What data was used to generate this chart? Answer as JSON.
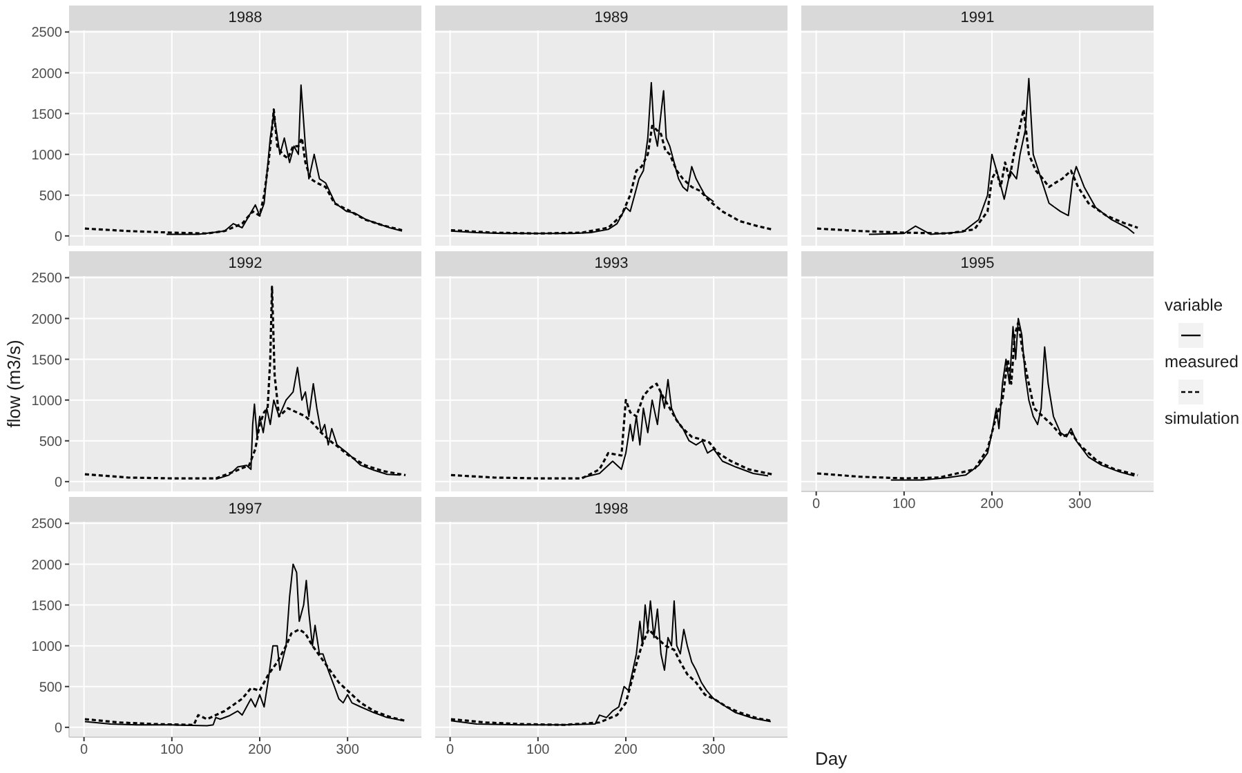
{
  "chart_data": [
    {
      "type": "line",
      "title": "1988",
      "xlim": [
        -17,
        384
      ],
      "ylim": [
        -120,
        2520
      ],
      "xticks": [
        0,
        100,
        200,
        300
      ],
      "yticks": [
        0,
        500,
        1000,
        1500,
        2000,
        2500
      ],
      "grid": true,
      "tick_labels": "y",
      "series": [
        {
          "color": "#000000",
          "line_style": "solid",
          "x": [
            94,
            130,
            160,
            170,
            180,
            188,
            195,
            200,
            205,
            212,
            216,
            223,
            228,
            234,
            239,
            244,
            247,
            252,
            256,
            262,
            268,
            275,
            286,
            299,
            308,
            321,
            348,
            362
          ],
          "values": [
            20,
            20,
            60,
            150,
            100,
            250,
            380,
            250,
            400,
            1200,
            1500,
            1000,
            1200,
            900,
            1100,
            1000,
            1850,
            1100,
            700,
            1000,
            700,
            650,
            400,
            300,
            280,
            200,
            100,
            60
          ]
        },
        {
          "color": "#000000",
          "line_style": "dashed",
          "x": [
            1,
            50,
            100,
            140,
            160,
            180,
            192,
            200,
            205,
            210,
            214,
            216,
            220,
            226,
            232,
            238,
            244,
            248,
            252,
            258,
            265,
            275,
            285,
            300,
            320,
            340,
            362
          ],
          "values": [
            90,
            60,
            40,
            30,
            60,
            150,
            300,
            250,
            500,
            900,
            1300,
            1550,
            1100,
            1000,
            950,
            1100,
            1100,
            1200,
            900,
            700,
            650,
            600,
            400,
            320,
            200,
            130,
            70
          ]
        }
      ]
    },
    {
      "type": "line",
      "title": "1989",
      "xlim": [
        -17,
        384
      ],
      "ylim": [
        -120,
        2520
      ],
      "xticks": [
        0,
        100,
        200,
        300
      ],
      "yticks": [
        0,
        500,
        1000,
        1500,
        2000,
        2500
      ],
      "grid": true,
      "tick_labels": false,
      "series": [
        {
          "color": "#000000",
          "line_style": "solid",
          "x": [
            1,
            30,
            60,
            100,
            140,
            160,
            180,
            190,
            200,
            205,
            210,
            215,
            220,
            225,
            229,
            232,
            236,
            240,
            243,
            246,
            250,
            255,
            260,
            265,
            270,
            275,
            280,
            285,
            290,
            300
          ],
          "values": [
            60,
            40,
            30,
            30,
            30,
            40,
            80,
            150,
            350,
            300,
            500,
            700,
            800,
            1200,
            1880,
            1300,
            1100,
            1500,
            1780,
            1200,
            1100,
            900,
            700,
            600,
            550,
            850,
            700,
            600,
            500,
            420
          ]
        },
        {
          "color": "#000000",
          "line_style": "dashed",
          "x": [
            1,
            50,
            100,
            150,
            180,
            195,
            205,
            212,
            218,
            225,
            230,
            235,
            240,
            245,
            250,
            258,
            265,
            275,
            285,
            295,
            310,
            330,
            350,
            366
          ],
          "values": [
            70,
            40,
            30,
            40,
            100,
            250,
            500,
            800,
            850,
            1000,
            1350,
            1300,
            1250,
            1050,
            1000,
            800,
            700,
            600,
            550,
            430,
            300,
            180,
            120,
            80
          ]
        }
      ]
    },
    {
      "type": "line",
      "title": "1991",
      "xlim": [
        -17,
        384
      ],
      "ylim": [
        -120,
        2520
      ],
      "xticks": [
        0,
        100,
        200,
        300
      ],
      "yticks": [
        0,
        500,
        1000,
        1500,
        2000,
        2500
      ],
      "grid": true,
      "tick_labels": false,
      "series": [
        {
          "color": "#000000",
          "line_style": "solid",
          "x": [
            60,
            100,
            113,
            130,
            167,
            185,
            195,
            200,
            208,
            214,
            221,
            228,
            232,
            238,
            242,
            247,
            256,
            265,
            278,
            287,
            292,
            296,
            305,
            318,
            336,
            354,
            362
          ],
          "values": [
            20,
            30,
            120,
            20,
            50,
            200,
            500,
            1000,
            700,
            450,
            800,
            700,
            1000,
            1300,
            1930,
            1000,
            700,
            400,
            300,
            250,
            700,
            850,
            600,
            350,
            200,
            100,
            30
          ]
        },
        {
          "color": "#000000",
          "line_style": "dashed",
          "x": [
            1,
            50,
            100,
            150,
            180,
            195,
            200,
            205,
            210,
            215,
            220,
            225,
            230,
            236,
            242,
            250,
            258,
            265,
            272,
            280,
            290,
            298,
            310,
            330,
            350,
            366
          ],
          "values": [
            90,
            60,
            40,
            30,
            80,
            300,
            700,
            800,
            600,
            900,
            700,
            1000,
            1250,
            1550,
            1000,
            800,
            700,
            600,
            650,
            700,
            800,
            600,
            400,
            250,
            160,
            100
          ]
        }
      ]
    },
    {
      "type": "line",
      "title": "1992",
      "ylabel": "flow (m3/s)",
      "xlim": [
        -17,
        384
      ],
      "ylim": [
        -120,
        2520
      ],
      "xticks": [
        0,
        100,
        200,
        300
      ],
      "yticks": [
        0,
        500,
        1000,
        1500,
        2000,
        2500
      ],
      "grid": true,
      "tick_labels": "y",
      "series": [
        {
          "color": "#000000",
          "line_style": "solid",
          "x": [
            150,
            165,
            175,
            185,
            190,
            192,
            194,
            197,
            200,
            204,
            208,
            212,
            216,
            222,
            230,
            238,
            243,
            248,
            252,
            256,
            261,
            265,
            270,
            274,
            278,
            282,
            288,
            300,
            315,
            330,
            345,
            360
          ],
          "values": [
            30,
            80,
            180,
            200,
            150,
            700,
            950,
            550,
            800,
            600,
            900,
            700,
            1000,
            800,
            1000,
            1100,
            1400,
            1000,
            1100,
            800,
            1200,
            900,
            600,
            700,
            450,
            650,
            450,
            350,
            200,
            140,
            90,
            80
          ]
        },
        {
          "color": "#000000",
          "line_style": "dashed",
          "x": [
            1,
            50,
            100,
            150,
            170,
            188,
            195,
            200,
            205,
            209,
            212,
            214,
            217,
            222,
            232,
            242,
            252,
            262,
            270,
            280,
            290,
            300,
            320,
            340,
            366
          ],
          "values": [
            90,
            50,
            40,
            40,
            120,
            200,
            400,
            700,
            850,
            900,
            1500,
            2390,
            1300,
            800,
            900,
            850,
            800,
            700,
            600,
            500,
            420,
            330,
            200,
            130,
            80
          ]
        }
      ]
    },
    {
      "type": "line",
      "title": "1993",
      "xlim": [
        -17,
        384
      ],
      "ylim": [
        -120,
        2520
      ],
      "xticks": [
        0,
        100,
        200,
        300
      ],
      "yticks": [
        0,
        500,
        1000,
        1500,
        2000,
        2500
      ],
      "grid": true,
      "tick_labels": false,
      "series": [
        {
          "color": "#000000",
          "line_style": "solid",
          "x": [
            150,
            170,
            185,
            195,
            200,
            205,
            208,
            212,
            216,
            220,
            225,
            230,
            236,
            240,
            244,
            248,
            252,
            258,
            265,
            272,
            280,
            287,
            293,
            300,
            310,
            325,
            345,
            362
          ],
          "values": [
            50,
            100,
            250,
            150,
            350,
            700,
            500,
            800,
            450,
            900,
            600,
            1000,
            700,
            1100,
            900,
            1250,
            900,
            750,
            650,
            500,
            450,
            500,
            350,
            400,
            250,
            180,
            100,
            70
          ]
        },
        {
          "color": "#000000",
          "line_style": "dashed",
          "x": [
            1,
            50,
            100,
            150,
            170,
            180,
            195,
            200,
            205,
            212,
            220,
            228,
            235,
            242,
            250,
            258,
            265,
            275,
            285,
            295,
            305,
            320,
            340,
            366
          ],
          "values": [
            80,
            50,
            40,
            40,
            150,
            350,
            320,
            1000,
            850,
            800,
            1050,
            1150,
            1200,
            1050,
            900,
            750,
            650,
            550,
            520,
            480,
            350,
            250,
            150,
            90
          ]
        }
      ]
    },
    {
      "type": "line",
      "title": "1995",
      "legend": "right",
      "legend_title": "variable",
      "xlim": [
        -17,
        384
      ],
      "ylim": [
        -120,
        2520
      ],
      "xticks": [
        0,
        100,
        200,
        300
      ],
      "yticks": [
        0,
        500,
        1000,
        1500,
        2000,
        2500
      ],
      "grid": true,
      "tick_labels": "x",
      "series": [
        {
          "name": "measured",
          "color": "#000000",
          "line_style": "solid",
          "x": [
            85,
            120,
            150,
            170,
            185,
            195,
            200,
            205,
            208,
            212,
            216,
            220,
            224,
            227,
            230,
            234,
            238,
            242,
            247,
            252,
            256,
            260,
            264,
            270,
            278,
            285,
            290,
            296,
            310,
            325,
            345,
            362
          ],
          "values": [
            20,
            20,
            50,
            80,
            200,
            350,
            600,
            900,
            650,
            1200,
            1500,
            1200,
            1900,
            1500,
            2000,
            1800,
            1300,
            1000,
            800,
            700,
            900,
            1650,
            1200,
            800,
            600,
            550,
            650,
            500,
            300,
            200,
            120,
            70
          ]
        },
        {
          "name": "simulation",
          "color": "#000000",
          "line_style": "dashed",
          "x": [
            1,
            50,
            100,
            140,
            160,
            180,
            195,
            205,
            212,
            218,
            222,
            226,
            230,
            235,
            240,
            248,
            258,
            268,
            280,
            290,
            300,
            320,
            340,
            366
          ],
          "values": [
            100,
            60,
            40,
            50,
            100,
            150,
            400,
            800,
            1000,
            1500,
            1200,
            1800,
            1950,
            1600,
            1300,
            900,
            800,
            700,
            550,
            600,
            450,
            250,
            150,
            80
          ]
        }
      ]
    },
    {
      "type": "line",
      "title": "1997",
      "xlim": [
        -17,
        384
      ],
      "ylim": [
        -120,
        2520
      ],
      "xticks": [
        0,
        100,
        200,
        300
      ],
      "yticks": [
        0,
        500,
        1000,
        1500,
        2000,
        2500
      ],
      "grid": true,
      "series": [
        {
          "color": "#000000",
          "line_style": "solid",
          "x": [
            1,
            30,
            60,
            100,
            140,
            147,
            150,
            155,
            165,
            175,
            180,
            190,
            195,
            200,
            205,
            210,
            215,
            220,
            223,
            230,
            234,
            238,
            242,
            245,
            250,
            253,
            256,
            260,
            263,
            268,
            272,
            278,
            285,
            290,
            295,
            300,
            305,
            315,
            330,
            345,
            364
          ],
          "values": [
            70,
            40,
            30,
            30,
            20,
            30,
            120,
            100,
            140,
            200,
            150,
            350,
            250,
            400,
            250,
            600,
            1000,
            1000,
            700,
            1000,
            1600,
            2000,
            1900,
            1300,
            1500,
            1800,
            1400,
            1000,
            1250,
            900,
            900,
            700,
            500,
            350,
            300,
            400,
            300,
            250,
            180,
            120,
            80
          ]
        },
        {
          "color": "#000000",
          "line_style": "dashed",
          "x": [
            1,
            40,
            80,
            125,
            130,
            140,
            160,
            180,
            190,
            200,
            210,
            220,
            230,
            236,
            245,
            252,
            260,
            270,
            280,
            290,
            300,
            315,
            330,
            350,
            366
          ],
          "values": [
            100,
            60,
            40,
            30,
            150,
            100,
            200,
            350,
            480,
            450,
            650,
            800,
            1000,
            1150,
            1200,
            1150,
            1000,
            850,
            700,
            550,
            450,
            300,
            200,
            120,
            80
          ]
        }
      ]
    },
    {
      "type": "line",
      "title": "1998",
      "xlabel": "Day",
      "xlim": [
        -17,
        384
      ],
      "ylim": [
        -120,
        2520
      ],
      "xticks": [
        0,
        100,
        200,
        300
      ],
      "yticks": [
        0,
        500,
        1000,
        1500,
        2000,
        2500
      ],
      "grid": true,
      "tick_labels": "x",
      "series": [
        {
          "color": "#000000",
          "line_style": "solid",
          "x": [
            1,
            30,
            80,
            130,
            165,
            170,
            178,
            185,
            192,
            198,
            203,
            208,
            212,
            216,
            219,
            222,
            225,
            228,
            232,
            236,
            240,
            244,
            248,
            252,
            255,
            258,
            262,
            266,
            270,
            275,
            280,
            286,
            292,
            300,
            310,
            325,
            345,
            365
          ],
          "values": [
            80,
            40,
            30,
            30,
            40,
            150,
            120,
            200,
            250,
            500,
            450,
            700,
            900,
            1300,
            1000,
            1500,
            1200,
            1550,
            1100,
            1450,
            900,
            700,
            1100,
            1000,
            1550,
            1000,
            900,
            1200,
            1000,
            800,
            700,
            550,
            450,
            350,
            280,
            180,
            110,
            70
          ]
        },
        {
          "color": "#000000",
          "line_style": "dashed",
          "x": [
            1,
            40,
            80,
            130,
            170,
            190,
            200,
            210,
            218,
            226,
            235,
            245,
            255,
            262,
            270,
            280,
            290,
            300,
            315,
            330,
            350,
            366
          ],
          "values": [
            100,
            60,
            40,
            30,
            60,
            150,
            300,
            700,
            1000,
            1200,
            1100,
            1000,
            950,
            800,
            650,
            550,
            400,
            350,
            250,
            180,
            110,
            80
          ]
        }
      ]
    }
  ]
}
